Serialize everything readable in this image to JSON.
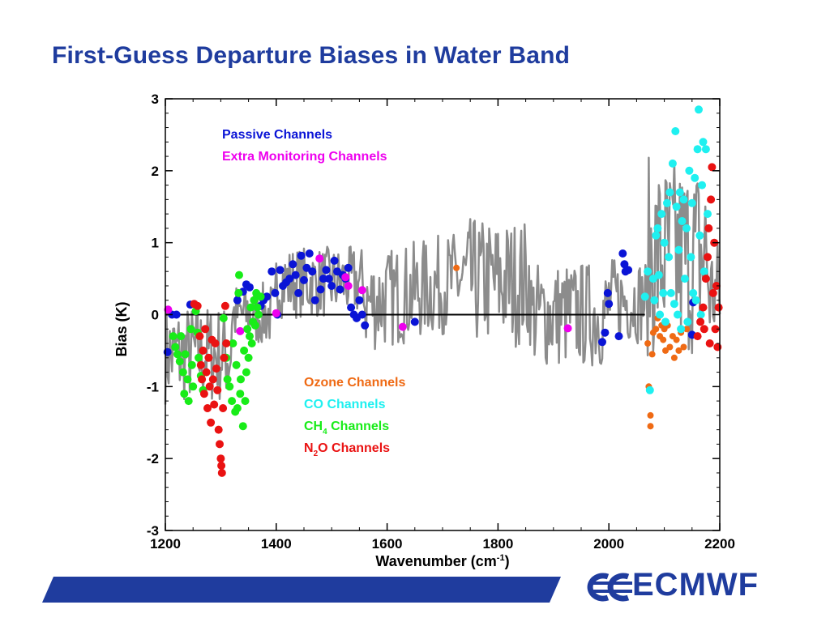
{
  "slide": {
    "title": "First-Guess Departure Biases in Water Band",
    "logo_text": "ECMWF"
  },
  "colors": {
    "title": "#1f3c9e",
    "passive": "#0a14d6",
    "extra": "#ee00ee",
    "ozone": "#ef6a14",
    "co": "#1ff0f0",
    "ch4": "#18ec18",
    "n2o": "#ea1212",
    "bias_line": "#8c8c8c",
    "zero_line": "#000000",
    "footer": "#1f3c9e"
  },
  "chart_data": {
    "type": "scatter",
    "xlabel": "Wavenumber (cm",
    "xlabel_sup": "-1",
    "xlabel_end": ")",
    "ylabel": "Bias (K)",
    "xlim": [
      1200,
      2200
    ],
    "ylim": [
      -3,
      3
    ],
    "xticks": [
      1200,
      1400,
      1600,
      1800,
      2000,
      2200
    ],
    "yticks": [
      -3,
      -2,
      -1,
      0,
      1,
      2,
      3
    ],
    "grid": false,
    "legend_top": [
      {
        "label": "Passive Channels",
        "color": "#0a14d6"
      },
      {
        "label": "Extra Monitoring Channels",
        "color": "#ee00ee"
      }
    ],
    "legend_mid": [
      {
        "label": "Ozone Channels",
        "color": "#ef6a14"
      },
      {
        "label": "CO Channels",
        "color": "#1ff0f0"
      },
      {
        "label": "CH",
        "sub": "4",
        "tail": " Channels",
        "color": "#18ec18"
      },
      {
        "label": "N",
        "sub": "2",
        "tail": "O Channels",
        "color": "#ea1212"
      }
    ],
    "zero_line": {
      "x_from": 1200,
      "x_to": 2065,
      "y": 0
    },
    "series": [
      {
        "name": "Passive Channels",
        "points": [
          [
            1204,
            -0.52
          ],
          [
            1212,
            0.0
          ],
          [
            1220,
            0.0
          ],
          [
            1245,
            0.14
          ],
          [
            1330,
            0.2
          ],
          [
            1340,
            0.32
          ],
          [
            1346,
            0.42
          ],
          [
            1352,
            0.38
          ],
          [
            1372,
            0.12
          ],
          [
            1377,
            0.2
          ],
          [
            1383,
            0.25
          ],
          [
            1392,
            0.6
          ],
          [
            1398,
            0.3
          ],
          [
            1402,
            0.0
          ],
          [
            1407,
            0.62
          ],
          [
            1412,
            0.4
          ],
          [
            1418,
            0.45
          ],
          [
            1424,
            0.5
          ],
          [
            1430,
            0.7
          ],
          [
            1435,
            0.55
          ],
          [
            1440,
            0.3
          ],
          [
            1445,
            0.82
          ],
          [
            1450,
            0.48
          ],
          [
            1455,
            0.65
          ],
          [
            1460,
            0.85
          ],
          [
            1465,
            0.6
          ],
          [
            1470,
            0.2
          ],
          [
            1480,
            0.35
          ],
          [
            1485,
            0.5
          ],
          [
            1490,
            0.62
          ],
          [
            1495,
            0.5
          ],
          [
            1500,
            0.4
          ],
          [
            1505,
            0.75
          ],
          [
            1510,
            0.6
          ],
          [
            1515,
            0.35
          ],
          [
            1520,
            0.55
          ],
          [
            1525,
            0.5
          ],
          [
            1530,
            0.65
          ],
          [
            1535,
            0.1
          ],
          [
            1540,
            0.0
          ],
          [
            1545,
            -0.05
          ],
          [
            1550,
            0.2
          ],
          [
            1555,
            0.0
          ],
          [
            1560,
            -0.15
          ],
          [
            1650,
            -0.1
          ],
          [
            1988,
            -0.38
          ],
          [
            1993,
            -0.25
          ],
          [
            1998,
            0.3
          ],
          [
            2000,
            0.15
          ],
          [
            2018,
            -0.3
          ],
          [
            2025,
            0.85
          ],
          [
            2028,
            0.7
          ],
          [
            2030,
            0.6
          ],
          [
            2035,
            0.62
          ],
          [
            2152,
            0.17
          ],
          [
            2150,
            -0.28
          ]
        ]
      },
      {
        "name": "Extra Monitoring Channels",
        "points": [
          [
            1205,
            0.07
          ],
          [
            1335,
            -0.23
          ],
          [
            1400,
            0.02
          ],
          [
            1478,
            0.78
          ],
          [
            1525,
            0.52
          ],
          [
            1530,
            0.4
          ],
          [
            1555,
            0.34
          ],
          [
            1628,
            -0.17
          ],
          [
            1926,
            -0.19
          ]
        ]
      },
      {
        "name": "Ozone Channels",
        "points": [
          [
            1725,
            0.65
          ],
          [
            2070,
            -0.4
          ],
          [
            2072,
            -1.0
          ],
          [
            2075,
            -1.4
          ],
          [
            2075,
            -1.55
          ],
          [
            2078,
            -0.55
          ],
          [
            2080,
            -0.25
          ],
          [
            2085,
            -0.2
          ],
          [
            2088,
            -0.05
          ],
          [
            2092,
            -0.3
          ],
          [
            2095,
            -0.15
          ],
          [
            2098,
            -0.35
          ],
          [
            2100,
            -0.2
          ],
          [
            2102,
            -0.5
          ],
          [
            2106,
            -0.15
          ],
          [
            2110,
            -0.45
          ],
          [
            2115,
            -0.3
          ],
          [
            2118,
            -0.6
          ],
          [
            2122,
            -0.35
          ],
          [
            2126,
            -0.5
          ],
          [
            2130,
            -0.25
          ],
          [
            2135,
            -0.45
          ],
          [
            2140,
            -0.2
          ]
        ]
      },
      {
        "name": "CO Channels",
        "points": [
          [
            2065,
            0.25
          ],
          [
            2070,
            0.6
          ],
          [
            2074,
            -1.05
          ],
          [
            2080,
            0.5
          ],
          [
            2082,
            0.2
          ],
          [
            2085,
            1.1
          ],
          [
            2088,
            1.2
          ],
          [
            2090,
            0.55
          ],
          [
            2092,
            0.0
          ],
          [
            2095,
            1.4
          ],
          [
            2098,
            0.3
          ],
          [
            2100,
            1.0
          ],
          [
            2102,
            -0.1
          ],
          [
            2105,
            1.55
          ],
          [
            2108,
            0.8
          ],
          [
            2110,
            1.7
          ],
          [
            2112,
            0.3
          ],
          [
            2115,
            2.1
          ],
          [
            2118,
            0.15
          ],
          [
            2120,
            2.55
          ],
          [
            2122,
            1.5
          ],
          [
            2124,
            0.0
          ],
          [
            2126,
            0.9
          ],
          [
            2128,
            1.7
          ],
          [
            2130,
            -0.2
          ],
          [
            2132,
            1.3
          ],
          [
            2135,
            1.6
          ],
          [
            2137,
            0.5
          ],
          [
            2140,
            1.2
          ],
          [
            2142,
            -0.1
          ],
          [
            2145,
            2.0
          ],
          [
            2148,
            0.8
          ],
          [
            2150,
            1.55
          ],
          [
            2152,
            0.3
          ],
          [
            2155,
            1.9
          ],
          [
            2157,
            0.2
          ],
          [
            2160,
            2.3
          ],
          [
            2162,
            2.85
          ],
          [
            2164,
            1.1
          ],
          [
            2166,
            0.0
          ],
          [
            2168,
            1.8
          ],
          [
            2170,
            2.4
          ],
          [
            2172,
            0.6
          ],
          [
            2175,
            2.3
          ],
          [
            2178,
            1.4
          ]
        ]
      },
      {
        "name": "CH4 Channels",
        "points": [
          [
            1214,
            -0.3
          ],
          [
            1218,
            -0.45
          ],
          [
            1222,
            -0.55
          ],
          [
            1226,
            -0.65
          ],
          [
            1228,
            -0.3
          ],
          [
            1232,
            -0.8
          ],
          [
            1234,
            -1.1
          ],
          [
            1236,
            -0.55
          ],
          [
            1240,
            -0.9
          ],
          [
            1242,
            -1.2
          ],
          [
            1246,
            -0.2
          ],
          [
            1248,
            -0.7
          ],
          [
            1250,
            -1.0
          ],
          [
            1255,
            0.05
          ],
          [
            1258,
            -0.25
          ],
          [
            1260,
            -0.6
          ],
          [
            1264,
            -0.85
          ],
          [
            1268,
            -1.05
          ],
          [
            1305,
            -0.05
          ],
          [
            1310,
            -0.6
          ],
          [
            1312,
            -0.9
          ],
          [
            1316,
            -1.0
          ],
          [
            1320,
            -1.2
          ],
          [
            1322,
            -0.4
          ],
          [
            1326,
            -1.35
          ],
          [
            1328,
            -0.7
          ],
          [
            1330,
            -1.3
          ],
          [
            1332,
            0.3
          ],
          [
            1333,
            0.55
          ],
          [
            1335,
            -1.1
          ],
          [
            1336,
            -0.9
          ],
          [
            1340,
            -1.55
          ],
          [
            1342,
            -0.5
          ],
          [
            1344,
            -1.2
          ],
          [
            1346,
            -0.8
          ],
          [
            1348,
            -0.2
          ],
          [
            1350,
            -0.6
          ],
          [
            1352,
            -0.3
          ],
          [
            1354,
            0.1
          ],
          [
            1356,
            -0.4
          ],
          [
            1358,
            -0.1
          ],
          [
            1360,
            0.2
          ],
          [
            1362,
            -0.15
          ],
          [
            1364,
            0.3
          ],
          [
            1366,
            0.1
          ],
          [
            1368,
            0.0
          ],
          [
            1372,
            0.25
          ]
        ]
      },
      {
        "name": "N2O Channels",
        "points": [
          [
            1252,
            0.15
          ],
          [
            1258,
            0.12
          ],
          [
            1262,
            -0.3
          ],
          [
            1264,
            -0.7
          ],
          [
            1266,
            -0.9
          ],
          [
            1268,
            -0.5
          ],
          [
            1270,
            -1.1
          ],
          [
            1272,
            -0.2
          ],
          [
            1274,
            -0.8
          ],
          [
            1276,
            -1.3
          ],
          [
            1278,
            -0.6
          ],
          [
            1280,
            -1.0
          ],
          [
            1282,
            -1.5
          ],
          [
            1284,
            -0.35
          ],
          [
            1286,
            -0.9
          ],
          [
            1288,
            -1.25
          ],
          [
            1290,
            -0.4
          ],
          [
            1292,
            -0.75
          ],
          [
            1294,
            -1.05
          ],
          [
            1296,
            -1.6
          ],
          [
            1298,
            -1.8
          ],
          [
            1300,
            -2.0
          ],
          [
            1301,
            -2.1
          ],
          [
            1302,
            -2.2
          ],
          [
            1304,
            -1.3
          ],
          [
            1306,
            -0.6
          ],
          [
            1308,
            0.12
          ],
          [
            1310,
            -0.4
          ],
          [
            2160,
            -0.3
          ],
          [
            2165,
            -0.1
          ],
          [
            2170,
            0.1
          ],
          [
            2172,
            -0.2
          ],
          [
            2175,
            0.5
          ],
          [
            2178,
            0.8
          ],
          [
            2180,
            1.2
          ],
          [
            2182,
            -0.4
          ],
          [
            2184,
            1.6
          ],
          [
            2186,
            2.05
          ],
          [
            2188,
            0.3
          ],
          [
            2190,
            1.0
          ],
          [
            2192,
            -0.2
          ],
          [
            2194,
            0.4
          ],
          [
            2196,
            -0.45
          ],
          [
            2198,
            0.1
          ]
        ]
      }
    ]
  }
}
